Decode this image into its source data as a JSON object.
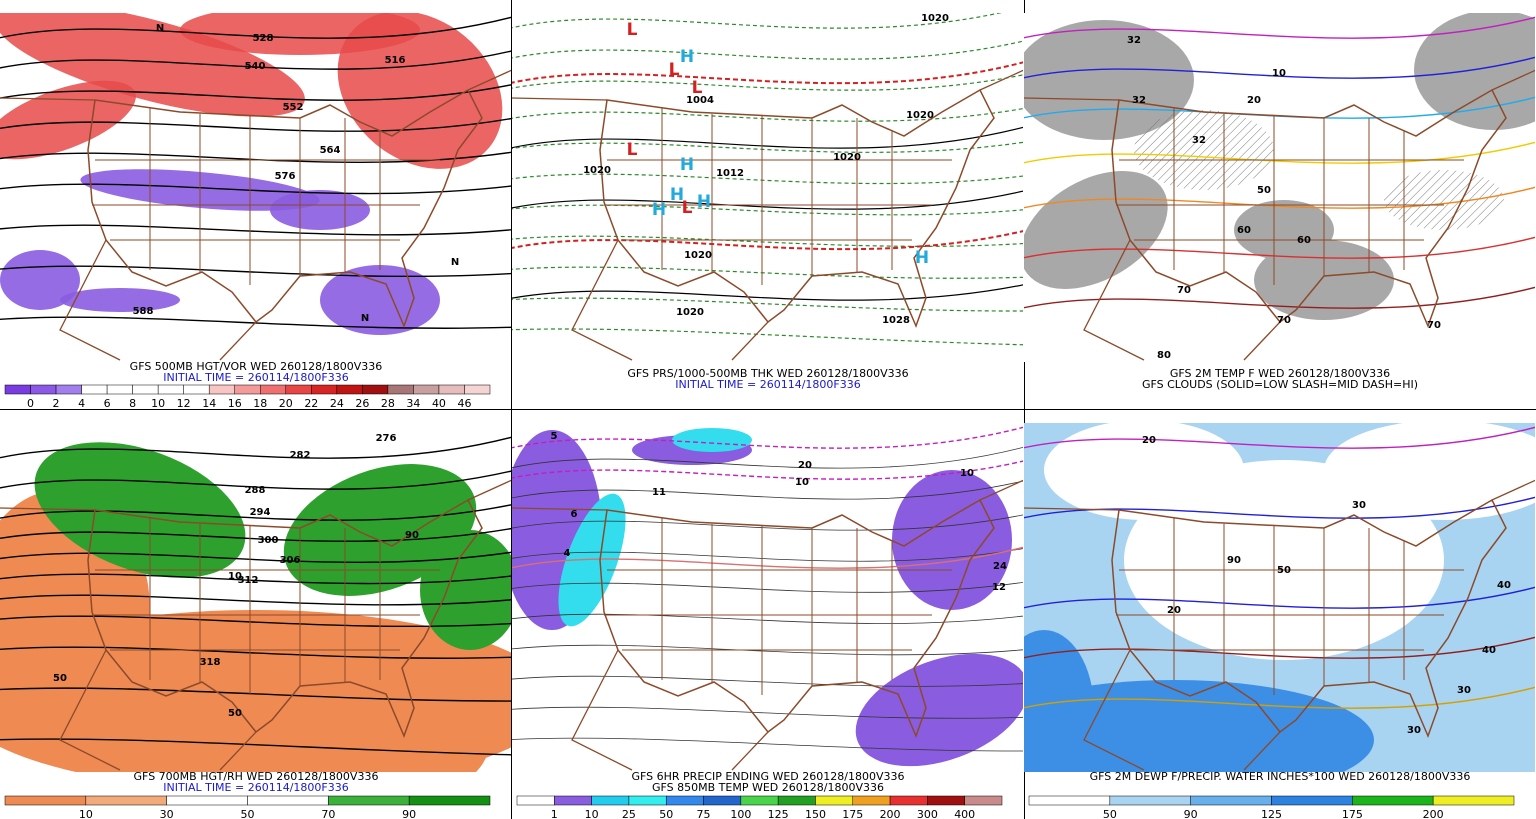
{
  "panels": [
    {
      "caption": [
        "GFS 500MB HGT/VOR WED 260128/1800V336",
        "INITIAL TIME = 260114/1800F336"
      ],
      "caption_colors": [
        "#000000",
        "#1a1acc"
      ],
      "colorbar": {
        "labels": [
          "0",
          "2",
          "4",
          "6",
          "8",
          "10",
          "12",
          "14",
          "16",
          "18",
          "20",
          "22",
          "24",
          "26",
          "28",
          "34",
          "40",
          "46"
        ],
        "colors": [
          "#7a3ce0",
          "#8c58e6",
          "#a37eee",
          "#ffffff",
          "#ffffff",
          "#ffffff",
          "#ffffff",
          "#ffffff",
          "#f8c4c4",
          "#f39a9a",
          "#ee7070",
          "#e84646",
          "#d82424",
          "#c01414",
          "#a01010",
          "#a87676",
          "#c8a0a0",
          "#e6bcbc",
          "#f6d4d4"
        ]
      },
      "map_labels": [
        "528",
        "540",
        "516",
        "552",
        "564",
        "576",
        "588",
        "N",
        "N",
        "N"
      ]
    },
    {
      "caption": [
        "GFS PRS/1000-500MB THK WED 260128/1800V336",
        "INITIAL TIME = 260114/1800F336"
      ],
      "caption_colors": [
        "#000000",
        "#1a1acc"
      ],
      "map_labels": [
        "1020",
        "1004",
        "1012",
        "1020",
        "1020",
        "1028",
        "1020",
        "1020",
        "1020",
        "L",
        "L",
        "L",
        "L",
        "L",
        "H",
        "H",
        "H",
        "H",
        "H",
        "H"
      ]
    },
    {
      "caption": [
        "GFS 2M TEMP F WED 260128/1800V336",
        "GFS CLOUDS (SOLID=LOW SLASH=MID DASH=HI)"
      ],
      "caption_colors": [
        "#000000",
        "#000000"
      ],
      "map_labels": [
        "32",
        "32",
        "10",
        "20",
        "32",
        "50",
        "60",
        "60",
        "70",
        "70",
        "70",
        "80"
      ]
    },
    {
      "caption": [
        "GFS 700MB HGT/RH WED 260128/1800V336",
        "INITIAL TIME = 260114/1800F336"
      ],
      "caption_colors": [
        "#000000",
        "#1a1acc"
      ],
      "colorbar": {
        "labels": [
          "10",
          "30",
          "50",
          "70",
          "90"
        ],
        "colors": [
          "#ee8a52",
          "#f3aa7a",
          "#ffffff",
          "#ffffff",
          "#3bb03b",
          "#149014"
        ]
      },
      "map_labels": [
        "276",
        "282",
        "288",
        "294",
        "300",
        "306",
        "312",
        "318",
        "10",
        "50",
        "90",
        "50"
      ]
    },
    {
      "caption": [
        "GFS 6HR PRECIP ENDING WED 260128/1800V336",
        "GFS 850MB TEMP WED 260128/1800V336"
      ],
      "caption_colors": [
        "#000000",
        "#000000"
      ],
      "colorbar": {
        "labels": [
          "1",
          "10",
          "25",
          "50",
          "75",
          "100",
          "125",
          "150",
          "175",
          "200",
          "300",
          "400"
        ],
        "colors": [
          "#ffffff",
          "#8a5ce0",
          "#22ccee",
          "#33eeee",
          "#3388ee",
          "#2266cc",
          "#4ad44a",
          "#22a022",
          "#eeee22",
          "#f0a020",
          "#e83030",
          "#a01010",
          "#c88a8a"
        ]
      },
      "map_labels": [
        "5",
        "6",
        "4",
        "11",
        "10",
        "24",
        "12",
        "20",
        "10"
      ]
    },
    {
      "caption": [
        "GFS 2M DEWP F/PRECIP. WATER INCHES*100 WED 260128/1800V336"
      ],
      "caption_colors": [
        "#000000"
      ],
      "colorbar": {
        "labels": [
          "50",
          "90",
          "125",
          "175",
          "200"
        ],
        "colors": [
          "#ffffff",
          "#a8d4f2",
          "#68b0ec",
          "#2c82e0",
          "#1bb41b",
          "#eeee22"
        ]
      },
      "map_labels": [
        "20",
        "30",
        "40",
        "50",
        "90",
        "30",
        "40",
        "20",
        "30"
      ]
    }
  ]
}
